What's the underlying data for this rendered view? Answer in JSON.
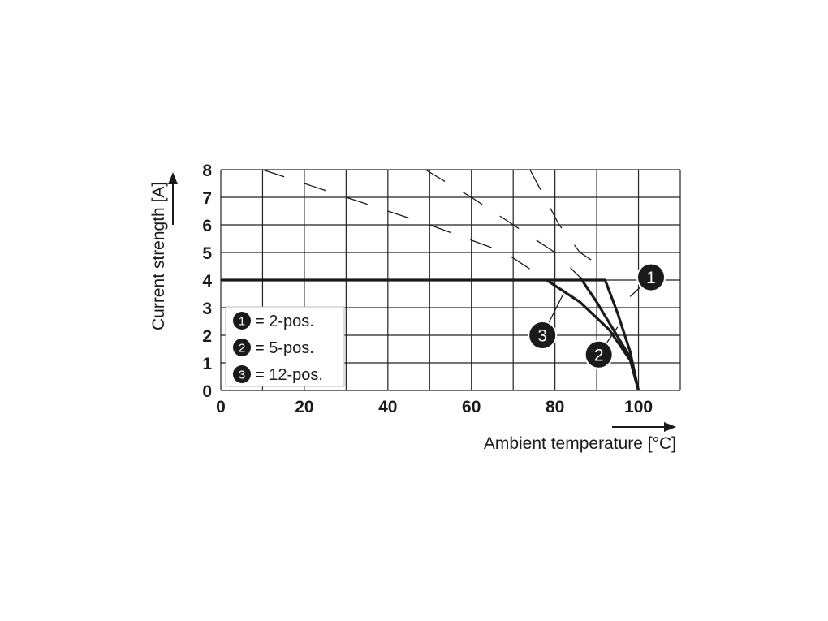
{
  "chart_data": {
    "type": "line",
    "title": "",
    "xlabel": "Ambient temperature [°C]",
    "ylabel": "Current strength [A]",
    "xlim": [
      0,
      110
    ],
    "ylim": [
      0,
      8
    ],
    "x_ticks": [
      0,
      20,
      40,
      60,
      80,
      100
    ],
    "y_ticks": [
      0,
      1,
      2,
      3,
      4,
      5,
      6,
      7,
      8
    ],
    "grid": true,
    "legend_position": "lower-left",
    "legend": [
      {
        "marker": "1",
        "text": "= 2-pos."
      },
      {
        "marker": "2",
        "text": "= 5-pos."
      },
      {
        "marker": "3",
        "text": "= 12-pos."
      }
    ],
    "series": [
      {
        "marker": "1",
        "solid": [
          [
            0,
            4
          ],
          [
            92,
            4
          ],
          [
            95,
            2.8
          ],
          [
            98,
            1.4
          ],
          [
            100,
            0
          ]
        ],
        "dashed": [
          [
            74,
            8
          ],
          [
            81,
            6
          ],
          [
            86,
            5
          ],
          [
            91,
            4.5
          ]
        ]
      },
      {
        "marker": "2",
        "solid": [
          [
            86,
            4.1
          ],
          [
            90,
            3.2
          ],
          [
            94,
            2.2
          ],
          [
            98,
            1.2
          ],
          [
            100,
            0
          ]
        ],
        "dashed": [
          [
            49,
            8
          ],
          [
            60,
            7
          ],
          [
            70,
            6
          ],
          [
            80,
            5
          ],
          [
            86,
            4.1
          ]
        ]
      },
      {
        "marker": "3",
        "solid": [
          [
            78,
            4
          ],
          [
            86,
            3.2
          ],
          [
            93,
            2.2
          ],
          [
            98,
            1.1
          ],
          [
            100,
            0
          ]
        ],
        "dashed": [
          [
            10,
            8
          ],
          [
            30,
            7
          ],
          [
            50,
            6
          ],
          [
            68,
            5
          ],
          [
            78,
            4
          ]
        ]
      }
    ],
    "markers": [
      {
        "label": "1",
        "x": 103,
        "y": 4.1,
        "leader_to": [
          98,
          3.4
        ]
      },
      {
        "label": "2",
        "x": 90.5,
        "y": 1.3,
        "leader_to": [
          95,
          2.3
        ]
      },
      {
        "label": "3",
        "x": 77,
        "y": 2.0,
        "leader_to": [
          82,
          3.5
        ]
      }
    ]
  }
}
